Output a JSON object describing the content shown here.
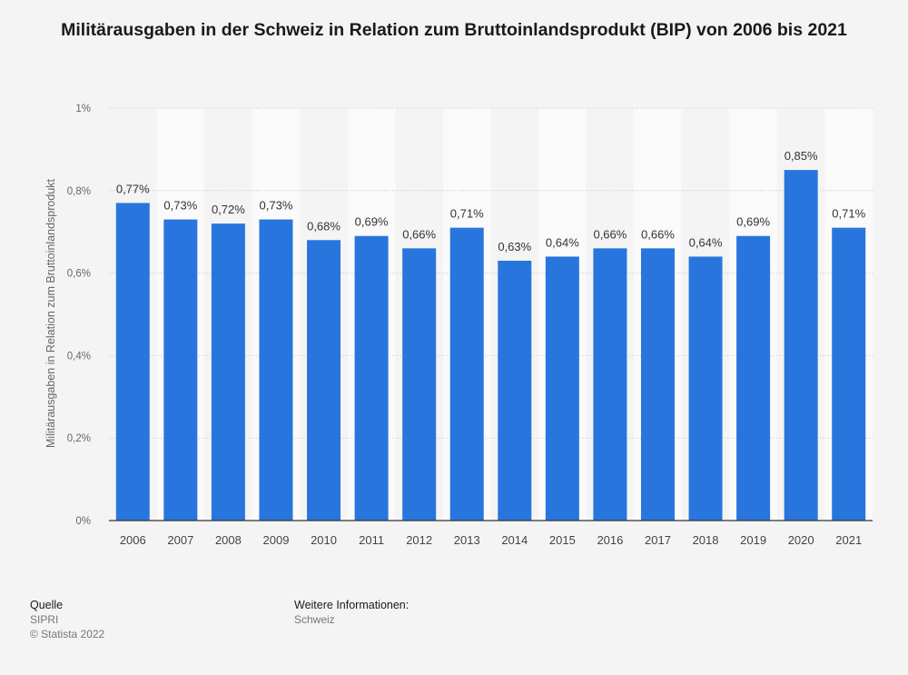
{
  "chart_data": {
    "type": "bar",
    "title": "Militärausgaben in der Schweiz in Relation zum Bruttoinlandsprodukt (BIP) von 2006 bis 2021",
    "ylabel": "Militärausgaben in Relation zum Bruttoinlandsprodukt",
    "xlabel": "",
    "categories": [
      "2006",
      "2007",
      "2008",
      "2009",
      "2010",
      "2011",
      "2012",
      "2013",
      "2014",
      "2015",
      "2016",
      "2017",
      "2018",
      "2019",
      "2020",
      "2021"
    ],
    "values": [
      0.77,
      0.73,
      0.72,
      0.73,
      0.68,
      0.69,
      0.66,
      0.71,
      0.63,
      0.64,
      0.66,
      0.66,
      0.64,
      0.69,
      0.85,
      0.71
    ],
    "value_labels": [
      "0,77%",
      "0,73%",
      "0,72%",
      "0,73%",
      "0,68%",
      "0,69%",
      "0,66%",
      "0,71%",
      "0,63%",
      "0,64%",
      "0,66%",
      "0,66%",
      "0,64%",
      "0,69%",
      "0,85%",
      "0,71%"
    ],
    "ylim": [
      0,
      1
    ],
    "yticks": [
      0,
      0.2,
      0.4,
      0.6,
      0.8,
      1
    ],
    "ytick_labels": [
      "0%",
      "0,2%",
      "0,4%",
      "0,6%",
      "0,8%",
      "1%"
    ],
    "grid": true,
    "bar_color": "#2876dd"
  },
  "footer": {
    "source_heading": "Quelle",
    "source_name": "SIPRI",
    "copyright": "© Statista 2022",
    "info_heading": "Weitere Informationen:",
    "info_value": "Schweiz"
  }
}
